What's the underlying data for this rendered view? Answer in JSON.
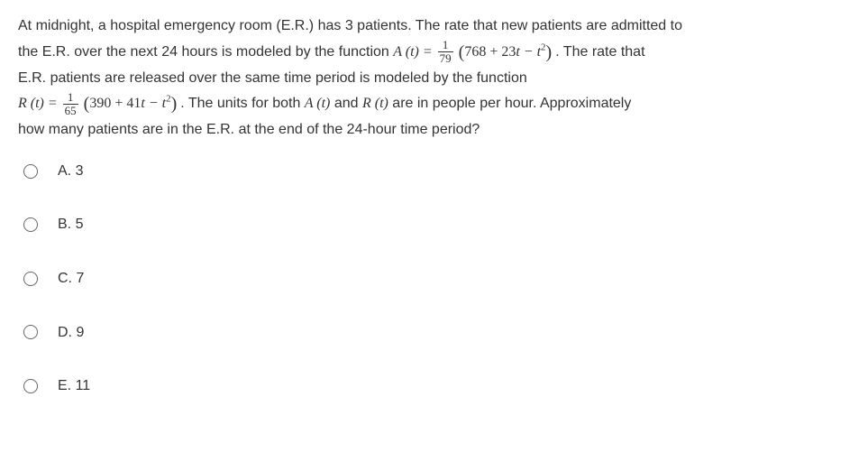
{
  "question": {
    "line1_a": "At midnight, a hospital emergency room (E.R.) has 3 patients. The rate that new patients are admitted to",
    "line2_a": "the E.R. over the next 24 hours is modeled by the function ",
    "func_A_lhs": "A (t) = ",
    "frac_A_top": "1",
    "frac_A_bot": "79",
    "func_A_rhs": " (768 + 23t − t",
    "sup2": "2",
    "line2_b": ". The rate that",
    "line3_a": "E.R. patients are released over the same time period is modeled by the function",
    "func_R_lhs": "R (t) = ",
    "frac_R_top": "1",
    "frac_R_bot": "65",
    "func_R_rhs": " (390 + 41t − t",
    "line4_b": ". The units for both ",
    "A_t": "A (t)",
    "and": " and ",
    "R_t": "R (t)",
    "line4_c": " are in people per hour. Approximately",
    "line5": "how many patients are in the E.R. at the end of the 24-hour time period?"
  },
  "choices": [
    {
      "label": "A.  3"
    },
    {
      "label": "B.  5"
    },
    {
      "label": "C.  7"
    },
    {
      "label": "D.  9"
    },
    {
      "label": "E.  11"
    }
  ]
}
